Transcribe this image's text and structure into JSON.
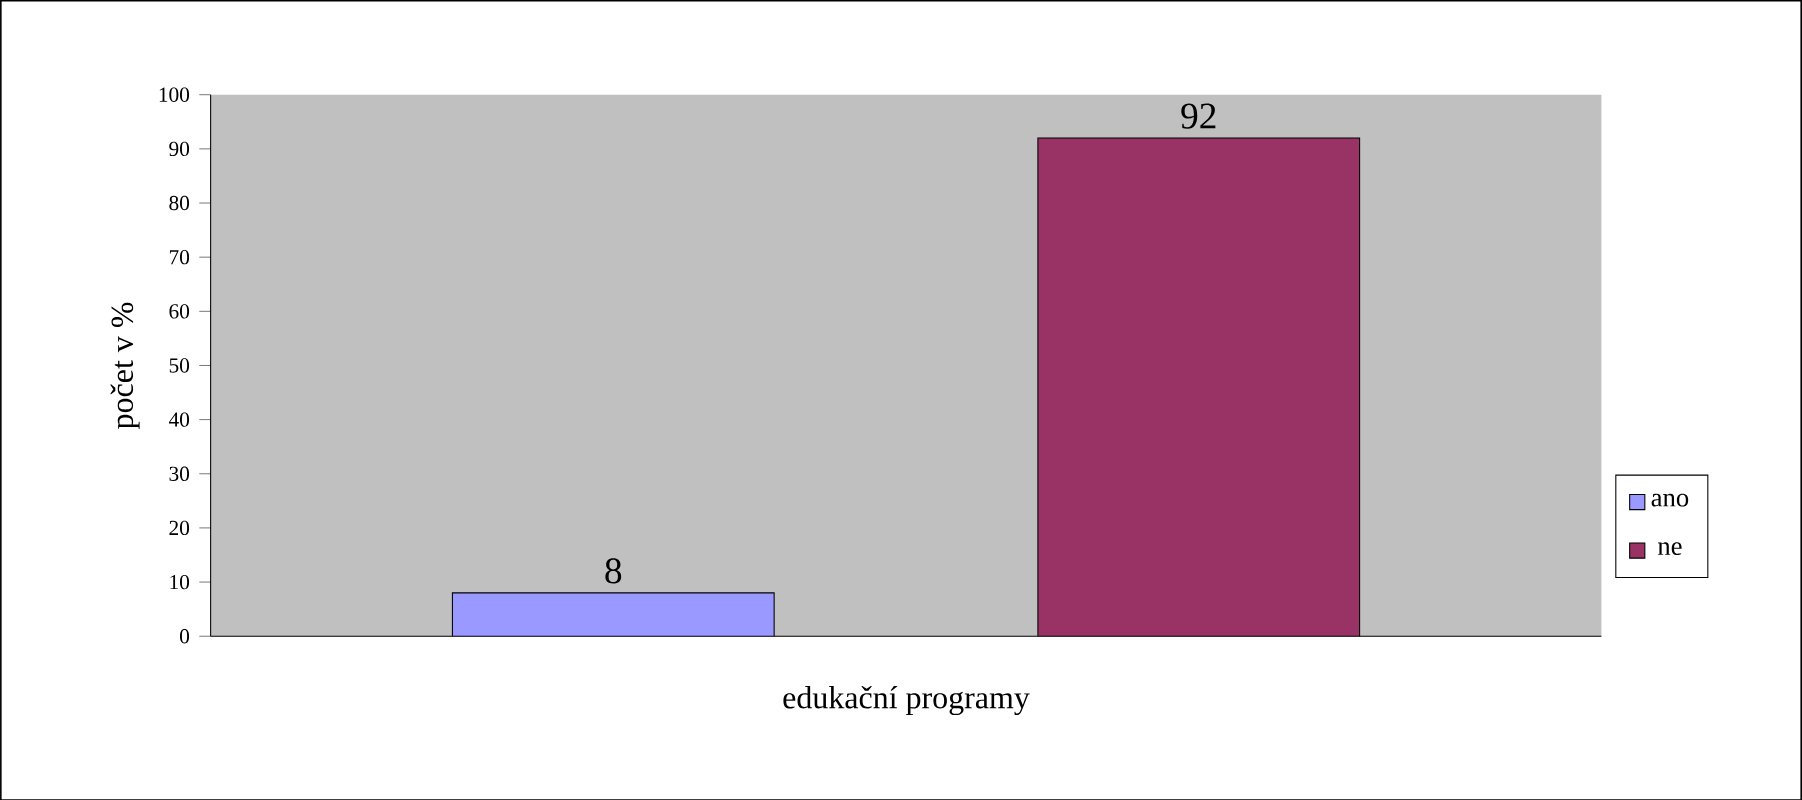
{
  "chart_data": {
    "type": "bar",
    "categories": [
      null
    ],
    "xlabel": "edukační programy",
    "ylabel": "počet v %",
    "series": [
      {
        "name": "ano",
        "color": "#9999ff",
        "values": [
          8
        ]
      },
      {
        "name": "ne",
        "color": "#993366",
        "values": [
          92
        ]
      }
    ],
    "ylim": [
      0,
      100
    ],
    "yticks": [
      0,
      10,
      20,
      30,
      40,
      50,
      60,
      70,
      80,
      90,
      100
    ],
    "data_labels": true,
    "legend": "right",
    "grid": false
  }
}
